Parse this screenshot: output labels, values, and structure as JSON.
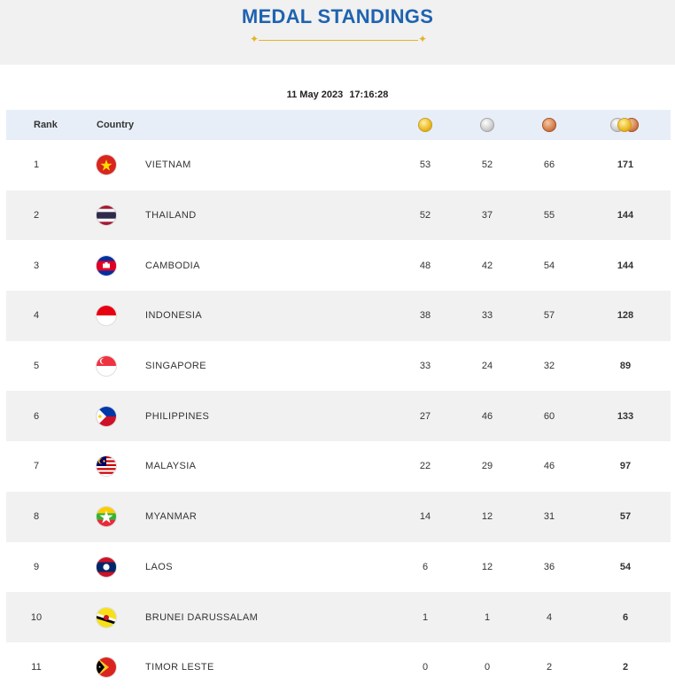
{
  "header": {
    "title": "MEDAL STANDINGS"
  },
  "updated": {
    "date": "11 May 2023",
    "time": "17:16:28"
  },
  "table": {
    "columns": {
      "rank": "Rank",
      "country": "Country"
    },
    "medal_icons": [
      "gold-medal-icon",
      "silver-medal-icon",
      "bronze-medal-icon",
      "total-medals-icon"
    ],
    "rows": [
      {
        "rank": "1",
        "country": "VIETNAM",
        "flag": "vietnam-flag-icon",
        "gold": "53",
        "silver": "52",
        "bronze": "66",
        "total": "171"
      },
      {
        "rank": "2",
        "country": "THAILAND",
        "flag": "thailand-flag-icon",
        "gold": "52",
        "silver": "37",
        "bronze": "55",
        "total": "144"
      },
      {
        "rank": "3",
        "country": "CAMBODIA",
        "flag": "cambodia-flag-icon",
        "gold": "48",
        "silver": "42",
        "bronze": "54",
        "total": "144"
      },
      {
        "rank": "4",
        "country": "INDONESIA",
        "flag": "indonesia-flag-icon",
        "gold": "38",
        "silver": "33",
        "bronze": "57",
        "total": "128"
      },
      {
        "rank": "5",
        "country": "SINGAPORE",
        "flag": "singapore-flag-icon",
        "gold": "33",
        "silver": "24",
        "bronze": "32",
        "total": "89"
      },
      {
        "rank": "6",
        "country": "PHILIPPINES",
        "flag": "philippines-flag-icon",
        "gold": "27",
        "silver": "46",
        "bronze": "60",
        "total": "133"
      },
      {
        "rank": "7",
        "country": "MALAYSIA",
        "flag": "malaysia-flag-icon",
        "gold": "22",
        "silver": "29",
        "bronze": "46",
        "total": "97"
      },
      {
        "rank": "8",
        "country": "MYANMAR",
        "flag": "myanmar-flag-icon",
        "gold": "14",
        "silver": "12",
        "bronze": "31",
        "total": "57"
      },
      {
        "rank": "9",
        "country": "LAOS",
        "flag": "laos-flag-icon",
        "gold": "6",
        "silver": "12",
        "bronze": "36",
        "total": "54"
      },
      {
        "rank": "10",
        "country": "BRUNEI DARUSSALAM",
        "flag": "brunei-flag-icon",
        "gold": "1",
        "silver": "1",
        "bronze": "4",
        "total": "6"
      },
      {
        "rank": "11",
        "country": "TIMOR LESTE",
        "flag": "timor-leste-flag-icon",
        "gold": "0",
        "silver": "0",
        "bronze": "2",
        "total": "2"
      }
    ]
  },
  "colors": {
    "title": "#1f63b0",
    "accent": "#e3b425",
    "header_bg": "#e7eef8",
    "stripe": "#f1f1f1"
  }
}
